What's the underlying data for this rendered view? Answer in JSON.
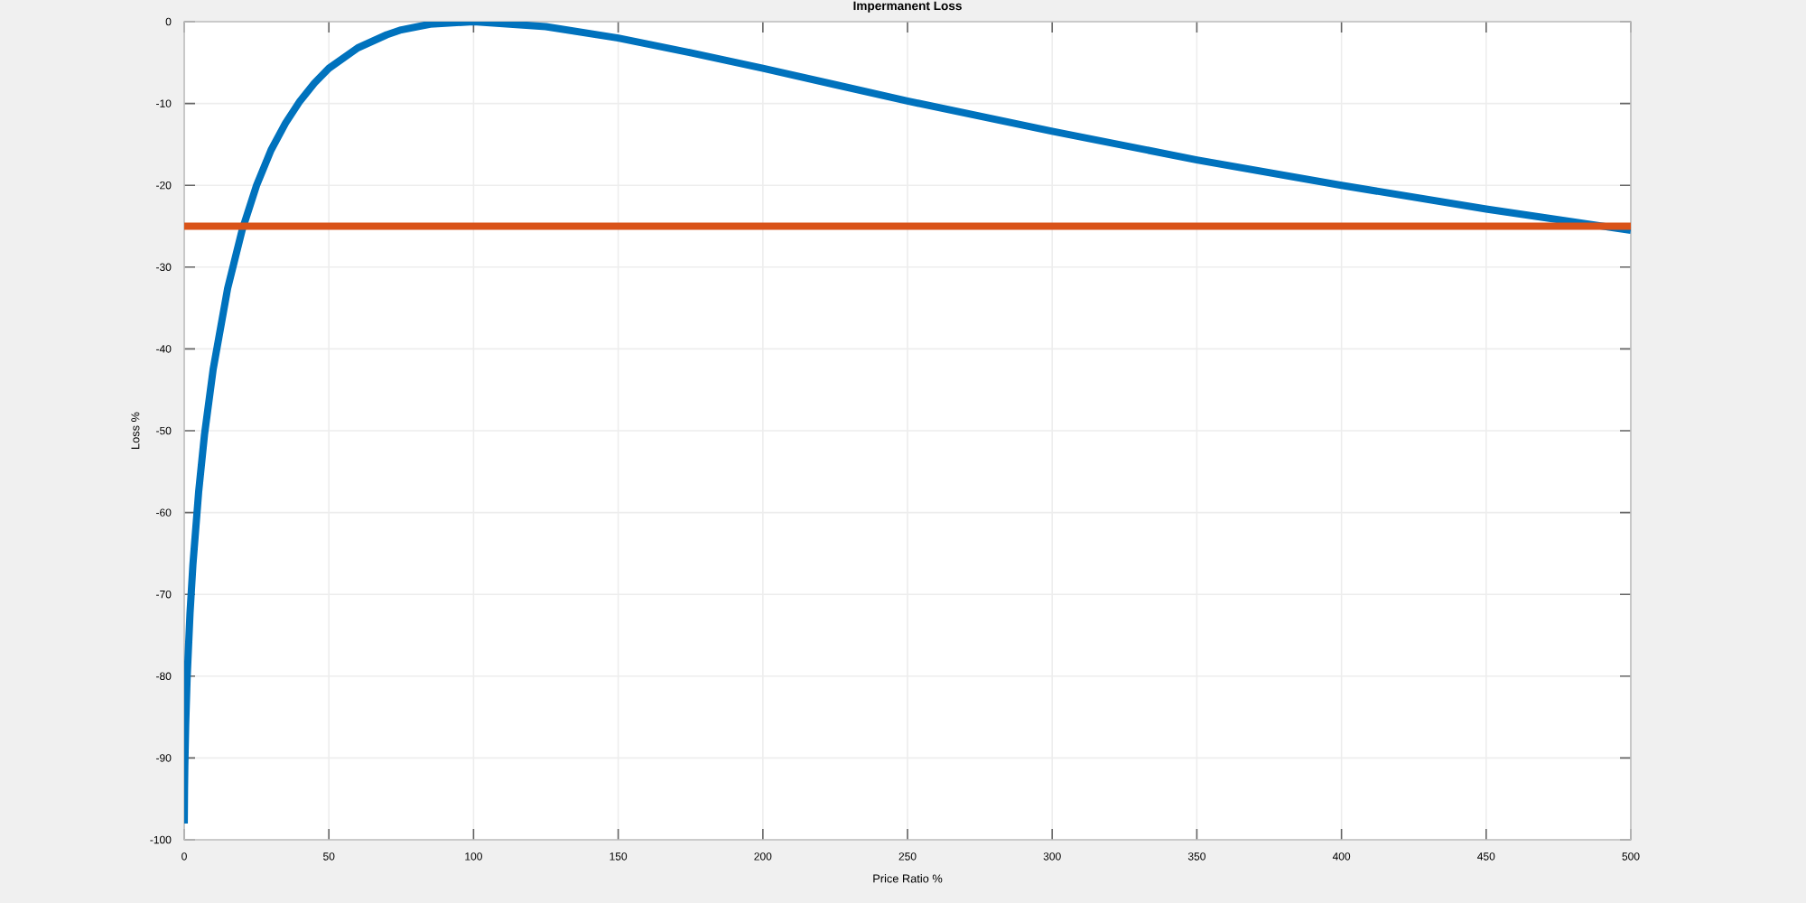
{
  "chart_data": {
    "type": "line",
    "title": "Impermanent Loss",
    "xlabel": "Price Ratio %",
    "ylabel": "Loss %",
    "xlim": [
      0,
      500
    ],
    "ylim": [
      -100,
      0
    ],
    "xticks": [
      0,
      50,
      100,
      150,
      200,
      250,
      300,
      350,
      400,
      450,
      500
    ],
    "yticks": [
      -100,
      -90,
      -80,
      -70,
      -60,
      -50,
      -40,
      -30,
      -20,
      -10,
      0
    ],
    "grid": true,
    "series": [
      {
        "color": "#0072bd",
        "x": [
          0.01,
          0.1,
          0.2,
          0.5,
          1,
          2,
          3,
          5,
          7,
          10,
          15,
          20,
          25,
          30,
          35,
          40,
          45,
          50,
          60,
          70,
          75,
          85,
          100,
          125,
          150,
          175,
          200,
          225,
          250,
          300,
          350,
          400,
          450,
          500
        ],
        "values": [
          -98,
          -93.7,
          -91.1,
          -85.9,
          -80.2,
          -72.3,
          -66.4,
          -57.4,
          -50.5,
          -42.5,
          -32.6,
          -25.5,
          -20,
          -15.7,
          -12.4,
          -9.7,
          -7.5,
          -5.7,
          -3.2,
          -1.6,
          -1.0,
          -0.3,
          0,
          -0.6,
          -2.0,
          -3.8,
          -5.7,
          -7.7,
          -9.7,
          -13.4,
          -16.9,
          -20,
          -22.9,
          -25.5
        ]
      },
      {
        "color": "#d95319",
        "x": [
          0,
          500
        ],
        "values": [
          -25,
          -25
        ]
      }
    ]
  }
}
